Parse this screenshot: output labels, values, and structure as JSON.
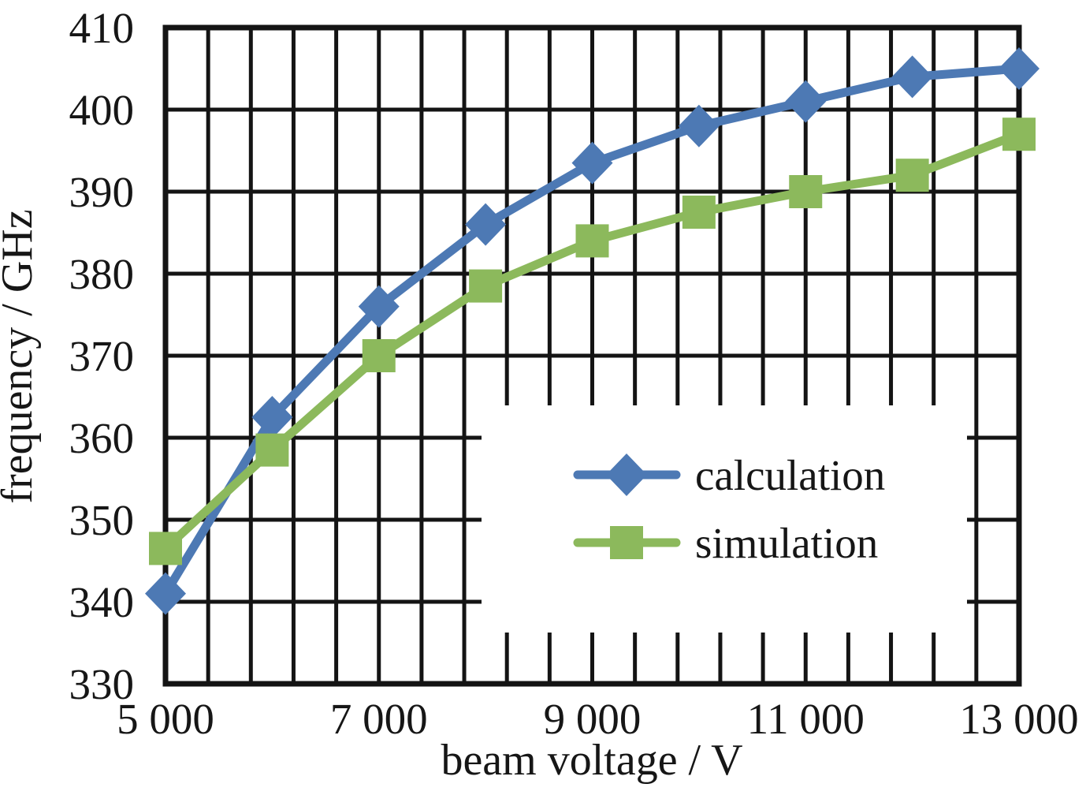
{
  "chart_data": {
    "type": "line",
    "title": "",
    "xlabel": "beam voltage / V",
    "ylabel": "frequency / GHz",
    "x": [
      5000,
      6000,
      7000,
      8000,
      9000,
      10000,
      11000,
      12000,
      13000
    ],
    "series": [
      {
        "name": "calculation",
        "marker": "diamond",
        "color": "#4d79b4",
        "values": [
          341,
          362.5,
          376,
          386,
          393.5,
          398,
          401,
          404,
          405
        ]
      },
      {
        "name": "simulation",
        "marker": "square",
        "color": "#8cb95c",
        "values": [
          346.5,
          358.5,
          370,
          378.5,
          384,
          387.5,
          390,
          392,
          397
        ]
      }
    ],
    "xlim": [
      5000,
      13000
    ],
    "ylim": [
      330,
      410
    ],
    "x_tick_values": [
      5000,
      7000,
      9000,
      11000,
      13000
    ],
    "x_tick_labels": [
      "5 000",
      "7 000",
      "9 000",
      "11 000",
      "13 000"
    ],
    "y_tick_values": [
      330,
      340,
      350,
      360,
      370,
      380,
      390,
      400,
      410
    ],
    "y_tick_labels": [
      "330",
      "340",
      "350",
      "360",
      "370",
      "380",
      "390",
      "400",
      "410"
    ],
    "x_minor_grid_step": 400,
    "y_grid_step": 10,
    "grid": true,
    "grid_color": "#141414",
    "axis_color": "#141414",
    "background": "#ffffff",
    "legend": {
      "position": "inside-middle-right",
      "entries": [
        "calculation",
        "simulation"
      ]
    }
  }
}
